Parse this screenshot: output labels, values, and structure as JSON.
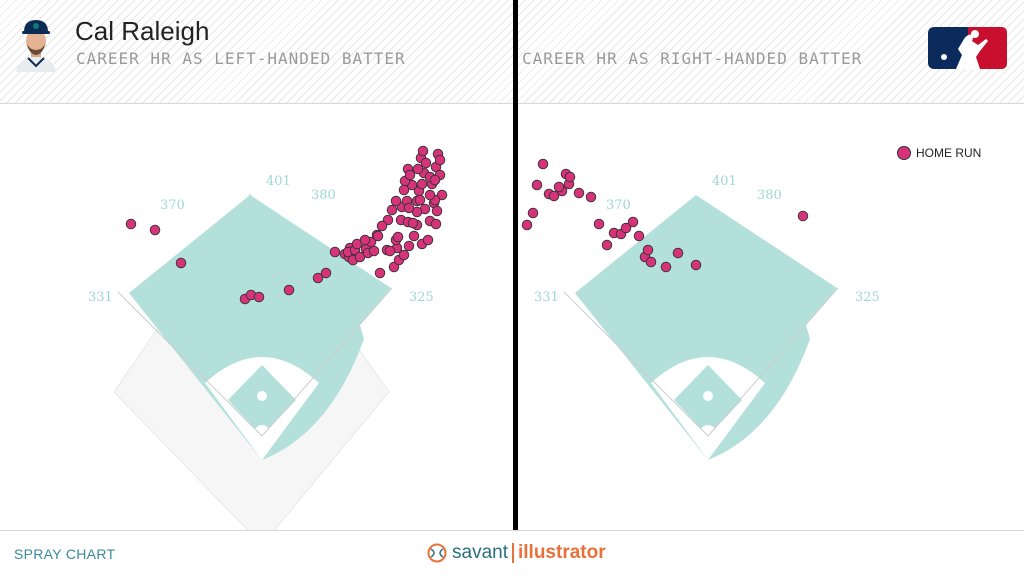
{
  "header": {
    "player_name": "Cal Raleigh",
    "left_subtitle": "CAREER HR AS LEFT-HANDED BATTER",
    "right_subtitle": "CAREER HR AS RIGHT-HANDED BATTER",
    "avatar_icon": "player-headshot-icon",
    "logo_icon": "mlb-logo-icon"
  },
  "footer": {
    "left_label": "SPRAY CHART",
    "brand_savant": "savant",
    "brand_illustrator": "illustrator"
  },
  "legend": {
    "label": "HOME RUN",
    "color": "#d6337a"
  },
  "field": {
    "distances": {
      "lf": "331",
      "lcf": "370",
      "cf": "401",
      "rcf": "380",
      "rf": "325"
    },
    "grass_color": "#b3e0db"
  },
  "chart_data": [
    {
      "type": "scatter",
      "title": "CAREER HR AS LEFT-HANDED BATTER",
      "series": [
        {
          "name": "HOME RUN",
          "points": [
            [
              -131,
              209
            ],
            [
              -107,
              203
            ],
            [
              -81,
              170
            ],
            [
              -17,
              134
            ],
            [
              -11,
              138
            ],
            [
              -3,
              136
            ],
            [
              27,
              143
            ],
            [
              56,
              155
            ],
            [
              64,
              160
            ],
            [
              73,
              181
            ],
            [
              83,
              179
            ],
            [
              87,
              176
            ],
            [
              88,
              185
            ],
            [
              91,
              173
            ],
            [
              86,
              181
            ],
            [
              93,
              183
            ],
            [
              98,
              176
            ],
            [
              95,
              189
            ],
            [
              104,
              184
            ],
            [
              106,
              180
            ],
            [
              109,
              191
            ],
            [
              118,
              160
            ],
            [
              125,
              183
            ],
            [
              132,
              166
            ],
            [
              135,
              185
            ],
            [
              128,
              182
            ],
            [
              115,
              198
            ],
            [
              134,
              193
            ],
            [
              112,
              182
            ],
            [
              103,
              193
            ],
            [
              116,
              197
            ],
            [
              136,
              196
            ],
            [
              139,
              213
            ],
            [
              146,
              211
            ],
            [
              155,
              208
            ],
            [
              163,
              224
            ],
            [
              172,
              230
            ],
            [
              155,
              221
            ],
            [
              168,
              212
            ],
            [
              174,
              209
            ],
            [
              137,
              173
            ],
            [
              142,
              178
            ],
            [
              147,
              187
            ],
            [
              152,
              197
            ],
            [
              160,
              189
            ],
            [
              166,
              193
            ],
            [
              130,
              223
            ],
            [
              157,
              242
            ],
            [
              170,
              249
            ],
            [
              162,
              260
            ],
            [
              174,
              266
            ],
            [
              178,
              258
            ],
            [
              159,
              275
            ],
            [
              150,
              248
            ],
            [
              143,
              252
            ],
            [
              146,
              264
            ],
            [
              164,
              270
            ],
            [
              140,
              226
            ],
            [
              180,
              238
            ],
            [
              126,
              213
            ],
            [
              151,
              210
            ],
            [
              176,
              279
            ],
            [
              161,
              282
            ],
            [
              168,
              256
            ],
            [
              175,
              222
            ],
            [
              155,
              232
            ],
            [
              178,
              273
            ],
            [
              158,
              233
            ],
            [
              160,
              249
            ],
            [
              173,
              253
            ],
            [
              156,
              264
            ],
            [
              134,
              232
            ],
            [
              142,
              243
            ],
            [
              148,
              258
            ],
            [
              145,
              232
            ],
            [
              173,
              233
            ],
            [
              147,
              225
            ],
            [
              120,
              207
            ],
            [
              168,
              238
            ]
          ]
        }
      ]
    },
    {
      "type": "scatter",
      "title": "CAREER HR AS RIGHT-HANDED BATTER",
      "series": [
        {
          "name": "HOME RUN",
          "points": [
            [
              -181,
              208
            ],
            [
              -175,
              220
            ],
            [
              -171,
              248
            ],
            [
              -165,
              269
            ],
            [
              -159,
              239
            ],
            [
              -154,
              237
            ],
            [
              -146,
              242
            ],
            [
              -142,
              259
            ],
            [
              -139,
              249
            ],
            [
              -149,
              246
            ],
            [
              -138,
              256
            ],
            [
              -129,
              240
            ],
            [
              -117,
              236
            ],
            [
              -109,
              209
            ],
            [
              -101,
              188
            ],
            [
              -94,
              200
            ],
            [
              -87,
              199
            ],
            [
              -82,
              205
            ],
            [
              -69,
              197
            ],
            [
              -63,
              176
            ],
            [
              -75,
              211
            ],
            [
              -57,
              171
            ],
            [
              -60,
              183
            ],
            [
              -42,
              166
            ],
            [
              -30,
              180
            ],
            [
              -12,
              168
            ],
            [
              95,
              217
            ]
          ]
        }
      ]
    }
  ]
}
